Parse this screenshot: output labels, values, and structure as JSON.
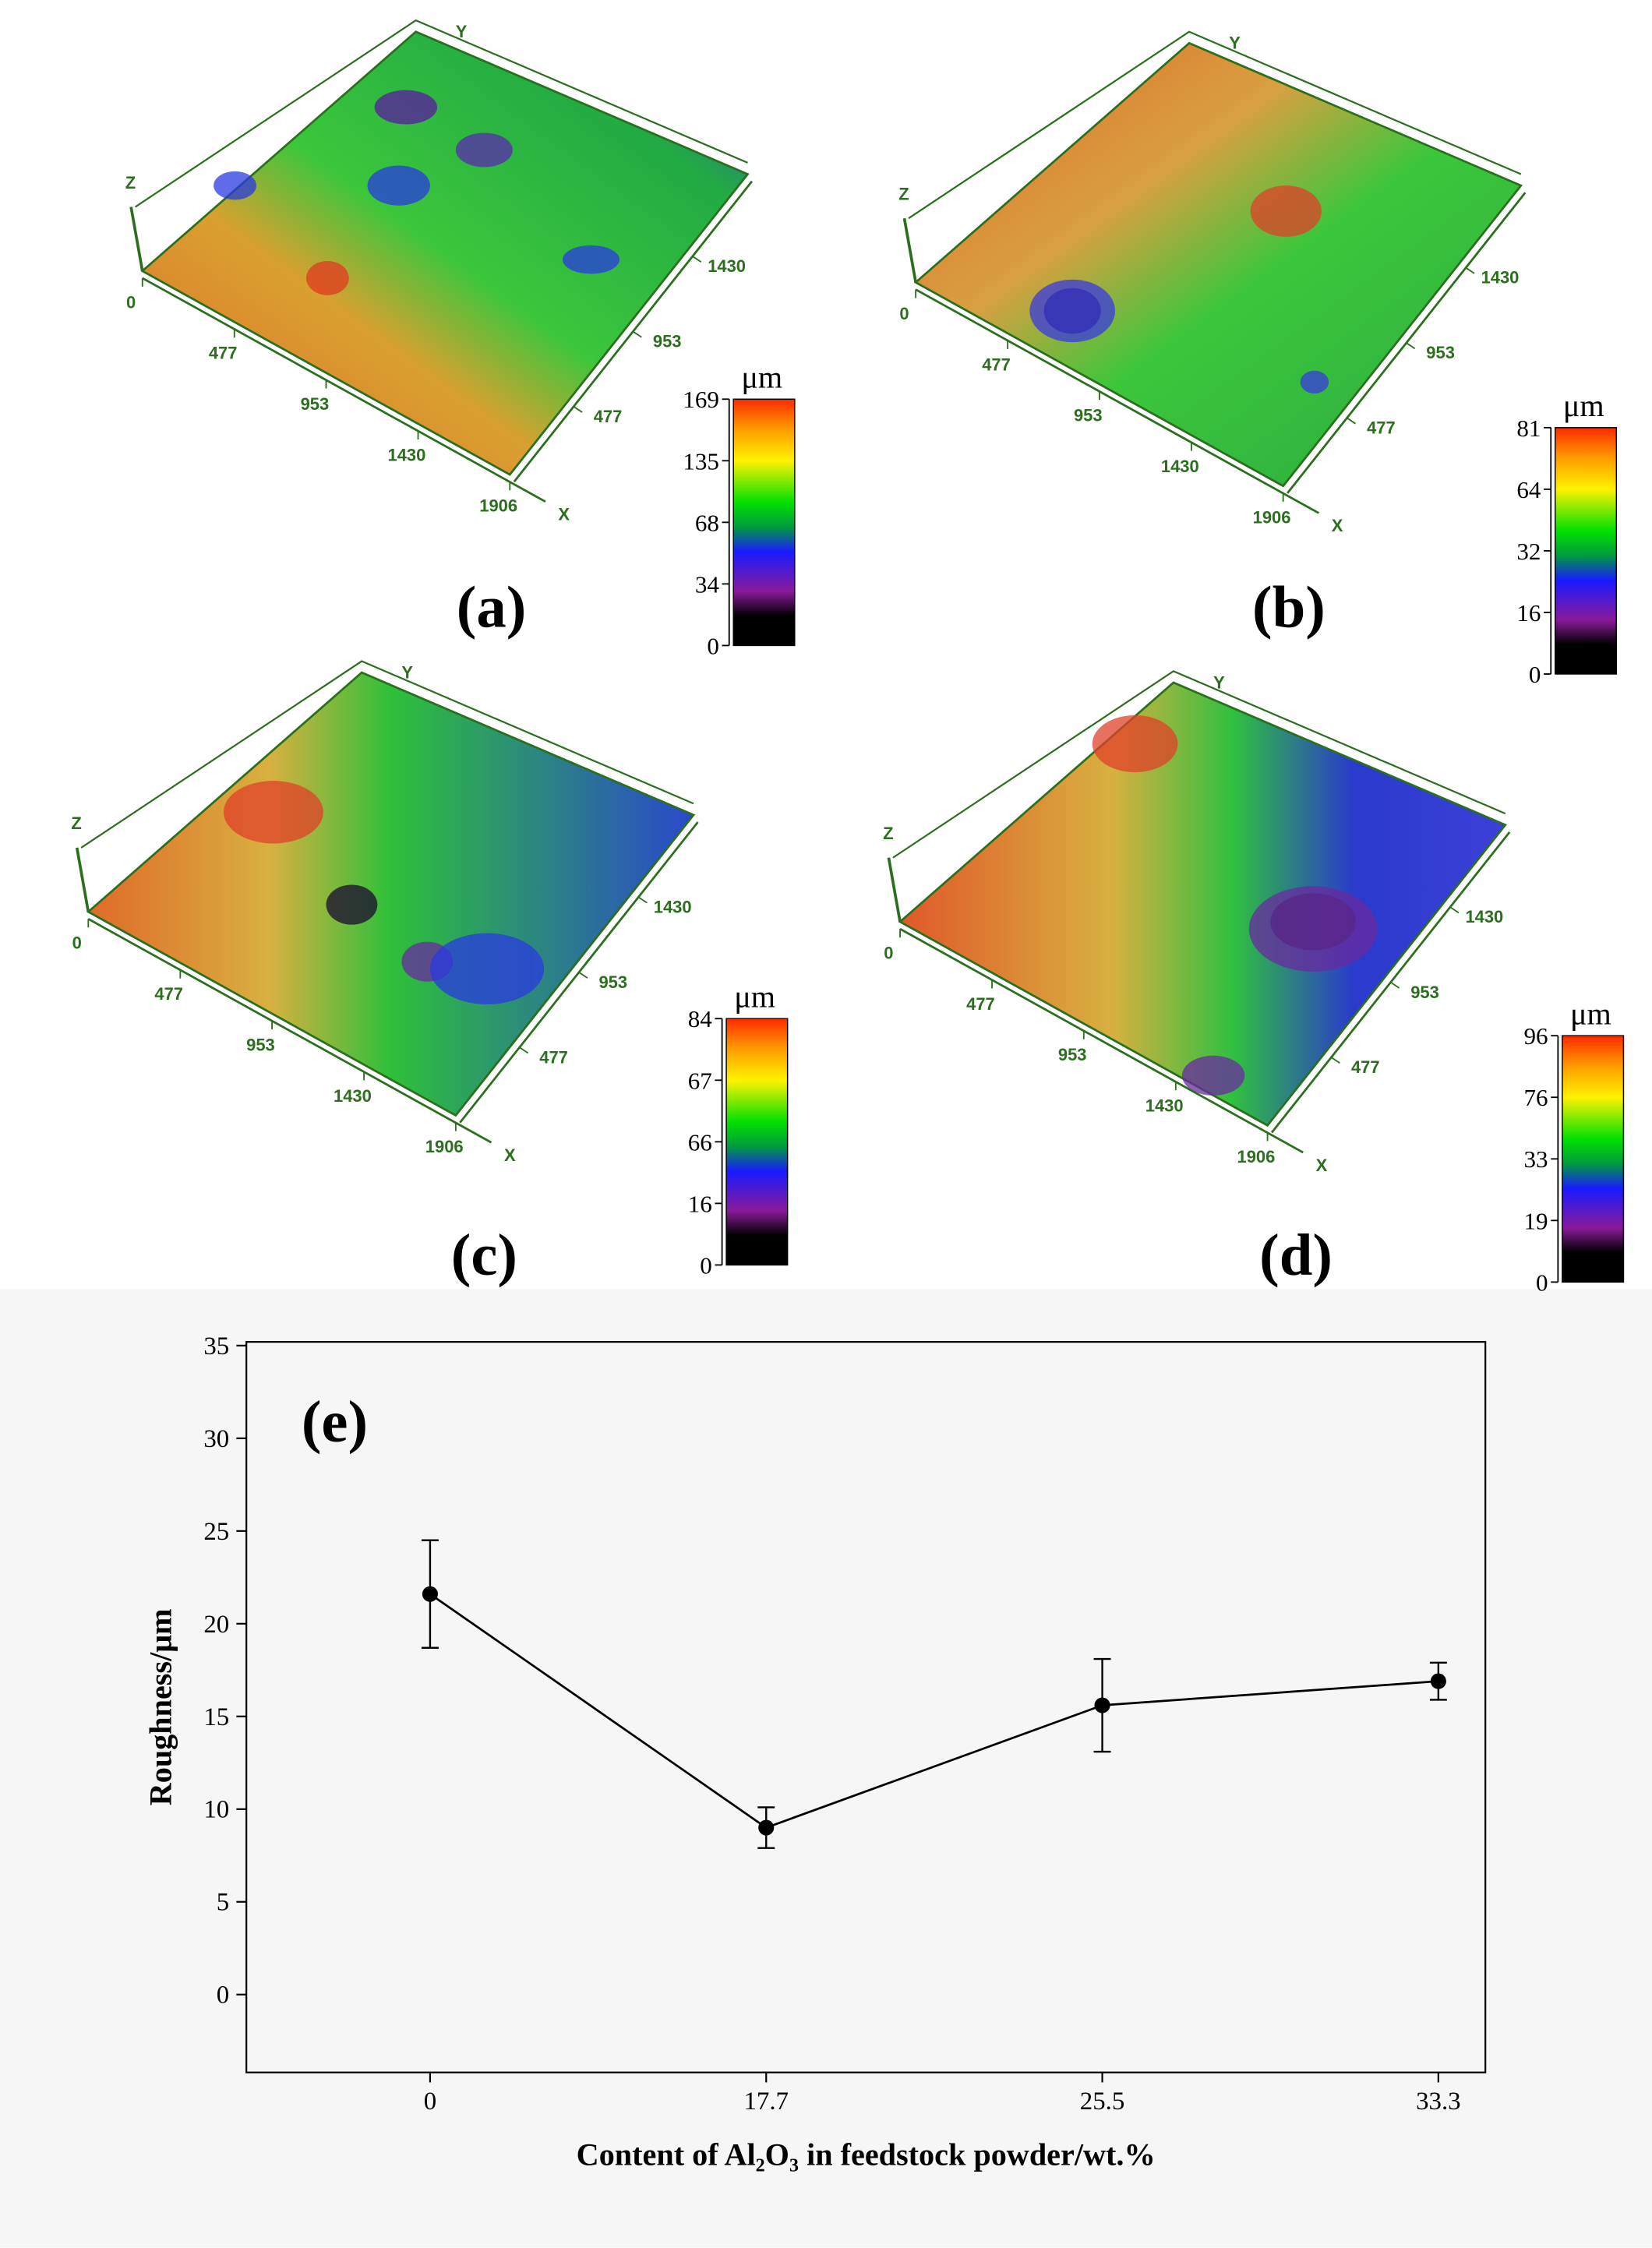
{
  "panels": [
    {
      "label": "(a)",
      "x_ticks": [
        0,
        477,
        953,
        1430,
        1906
      ],
      "y_ticks": [
        477,
        953,
        1430
      ],
      "xlim": [
        0,
        1906
      ],
      "axis_names": [
        "X",
        "Y",
        "Z"
      ],
      "colorbar": {
        "unit": "μm",
        "labels": [
          169,
          135,
          68,
          34,
          0
        ]
      }
    },
    {
      "label": "(b)",
      "x_ticks": [
        0,
        477,
        953,
        1430,
        1906
      ],
      "y_ticks": [
        477,
        953,
        1430
      ],
      "xlim": [
        0,
        1906
      ],
      "axis_names": [
        "X",
        "Y",
        "Z"
      ],
      "colorbar": {
        "unit": "μm",
        "labels": [
          81,
          64,
          32,
          16,
          0
        ]
      }
    },
    {
      "label": "(c)",
      "x_ticks": [
        0,
        477,
        953,
        1430,
        1906
      ],
      "y_ticks": [
        477,
        953,
        1430
      ],
      "xlim": [
        0,
        1906
      ],
      "axis_names": [
        "X",
        "Y",
        "Z"
      ],
      "colorbar": {
        "unit": "μm",
        "labels": [
          84,
          67,
          66,
          16,
          0
        ]
      }
    },
    {
      "label": "(d)",
      "x_ticks": [
        0,
        477,
        953,
        1430,
        1906
      ],
      "y_ticks": [
        477,
        953,
        1430
      ],
      "xlim": [
        0,
        1906
      ],
      "axis_names": [
        "X",
        "Y",
        "Z"
      ],
      "colorbar": {
        "unit": "μm",
        "labels": [
          96,
          76,
          33,
          19,
          0
        ]
      }
    }
  ],
  "chart_data": {
    "type": "line",
    "annotation": "(e)",
    "x_label": "Content of Al₂O₃ in feedstock powder/wt.%",
    "y_label": "Roughness/μm",
    "categories": [
      "0",
      "17.7",
      "25.5",
      "33.3"
    ],
    "series": [
      {
        "color": "#000000",
        "values": [
          21.6,
          9.0,
          15.6,
          16.9
        ],
        "errors": [
          2.9,
          1.1,
          2.5,
          1.0
        ]
      }
    ],
    "ylim": [
      -4.2,
      35.2
    ],
    "yticks": [
      0,
      5,
      10,
      15,
      20,
      25,
      30,
      35
    ]
  }
}
